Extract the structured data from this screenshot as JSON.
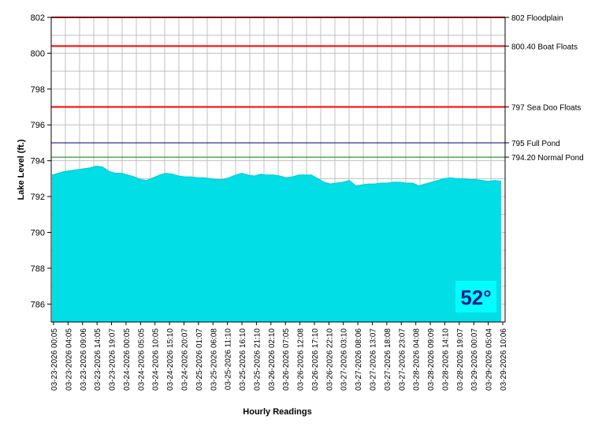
{
  "chart_data": {
    "type": "area",
    "xlabel": "Hourly Readings",
    "ylabel": "Lake Level (ft.)",
    "ylim": [
      785,
      802
    ],
    "y_ticks": [
      "802",
      "800",
      "798",
      "796",
      "794",
      "792",
      "790",
      "788",
      "786"
    ],
    "y_tick_values": [
      802,
      800,
      798,
      796,
      794,
      792,
      790,
      788,
      786
    ],
    "grid": true,
    "x_tick_labels": [
      "03-23-2026 00:05",
      "03-23-2026 04:05",
      "03-23-2026 09:06",
      "03-23-2026 14:05",
      "03-23-2026 19:07",
      "03-24-2026 00:05",
      "03-24-2026 05:05",
      "03-24-2026 10:05",
      "03-24-2026 15:10",
      "03-24-2026 20:07",
      "03-25-2026 01:07",
      "03-25-2026 06:08",
      "03-25-2026 11:10",
      "03-25-2026 16:10",
      "03-25-2026 21:10",
      "03-26-2026 02:10",
      "03-26-2026 07:05",
      "03-26-2026 12:08",
      "03-26-2026 17:10",
      "03-26-2026 22:10",
      "03-27-2026 03:10",
      "03-27-2026 08:06",
      "03-27-2026 13:07",
      "03-27-2026 18:08",
      "03-27-2026 23:07",
      "03-28-2026 04:08",
      "03-28-2026 09:09",
      "03-28-2026 14:10",
      "03-28-2026 19:07",
      "03-29-2026 00:07",
      "03-29-2026 05:04",
      "03-29-2026 10:06"
    ],
    "series": [
      {
        "color": "#00e5ee",
        "values": [
          793.2,
          793.3,
          793.4,
          793.45,
          793.5,
          793.55,
          793.6,
          793.7,
          793.65,
          793.4,
          793.3,
          793.3,
          793.2,
          793.1,
          792.95,
          792.9,
          793.05,
          793.2,
          793.3,
          793.25,
          793.15,
          793.1,
          793.1,
          793.05,
          793.05,
          793.0,
          792.95,
          792.95,
          793.05,
          793.2,
          793.3,
          793.2,
          793.15,
          793.25,
          793.2,
          793.2,
          793.15,
          793.05,
          793.1,
          793.2,
          793.2,
          793.2,
          793.0,
          792.8,
          792.7,
          792.75,
          792.8,
          792.9,
          792.6,
          792.65,
          792.7,
          792.7,
          792.75,
          792.75,
          792.8,
          792.8,
          792.75,
          792.75,
          792.6,
          792.7,
          792.8,
          792.9,
          793.0,
          793.05,
          793.0,
          793.0,
          792.95,
          792.95,
          792.9,
          792.85,
          792.9,
          792.85
        ]
      }
    ],
    "reference_lines": [
      {
        "value": 802.0,
        "label": "802 Floodplain",
        "color": "#ff0000"
      },
      {
        "value": 800.4,
        "label": "800.40 Boat Floats",
        "color": "#ff0000"
      },
      {
        "value": 797.0,
        "label": "797 Sea Doo Floats",
        "color": "#ff0000"
      },
      {
        "value": 795.0,
        "label": "795 Full Pond",
        "color": "#000080"
      },
      {
        "value": 794.2,
        "label": "794.20 Normal Pond",
        "color": "#008000"
      }
    ],
    "temperature_badge": {
      "text": "52°",
      "background": "#00ffff",
      "color": "#0a1e8c"
    }
  }
}
